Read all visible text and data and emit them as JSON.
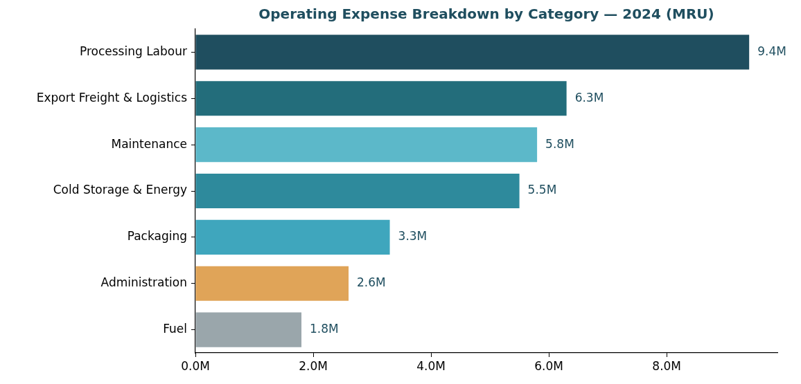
{
  "chart_data": {
    "type": "bar",
    "orientation": "horizontal",
    "title": "Operating Expense Breakdown by Category — 2024 (MRU)",
    "categories": [
      "Processing Labour",
      "Export Freight & Logistics",
      "Maintenance",
      "Cold Storage & Energy",
      "Packaging",
      "Administration",
      "Fuel"
    ],
    "values": [
      9.4,
      6.3,
      5.8,
      5.5,
      3.3,
      2.6,
      1.8
    ],
    "colors": [
      "#1f4e5f",
      "#236d7b",
      "#5cb8c9",
      "#2e8a9c",
      "#3fa6bd",
      "#e0a458",
      "#9aa6ab"
    ],
    "value_labels": [
      "9.4M",
      "6.3M",
      "5.8M",
      "5.5M",
      "3.3M",
      "2.6M",
      "1.8M"
    ],
    "xlim": [
      0,
      9.88
    ],
    "xticks": [
      {
        "value": 0,
        "label": "0.0M"
      },
      {
        "value": 2,
        "label": "2.0M"
      },
      {
        "value": 4,
        "label": "4.0M"
      },
      {
        "value": 6,
        "label": "6.0M"
      },
      {
        "value": 8,
        "label": "8.0M"
      }
    ]
  }
}
